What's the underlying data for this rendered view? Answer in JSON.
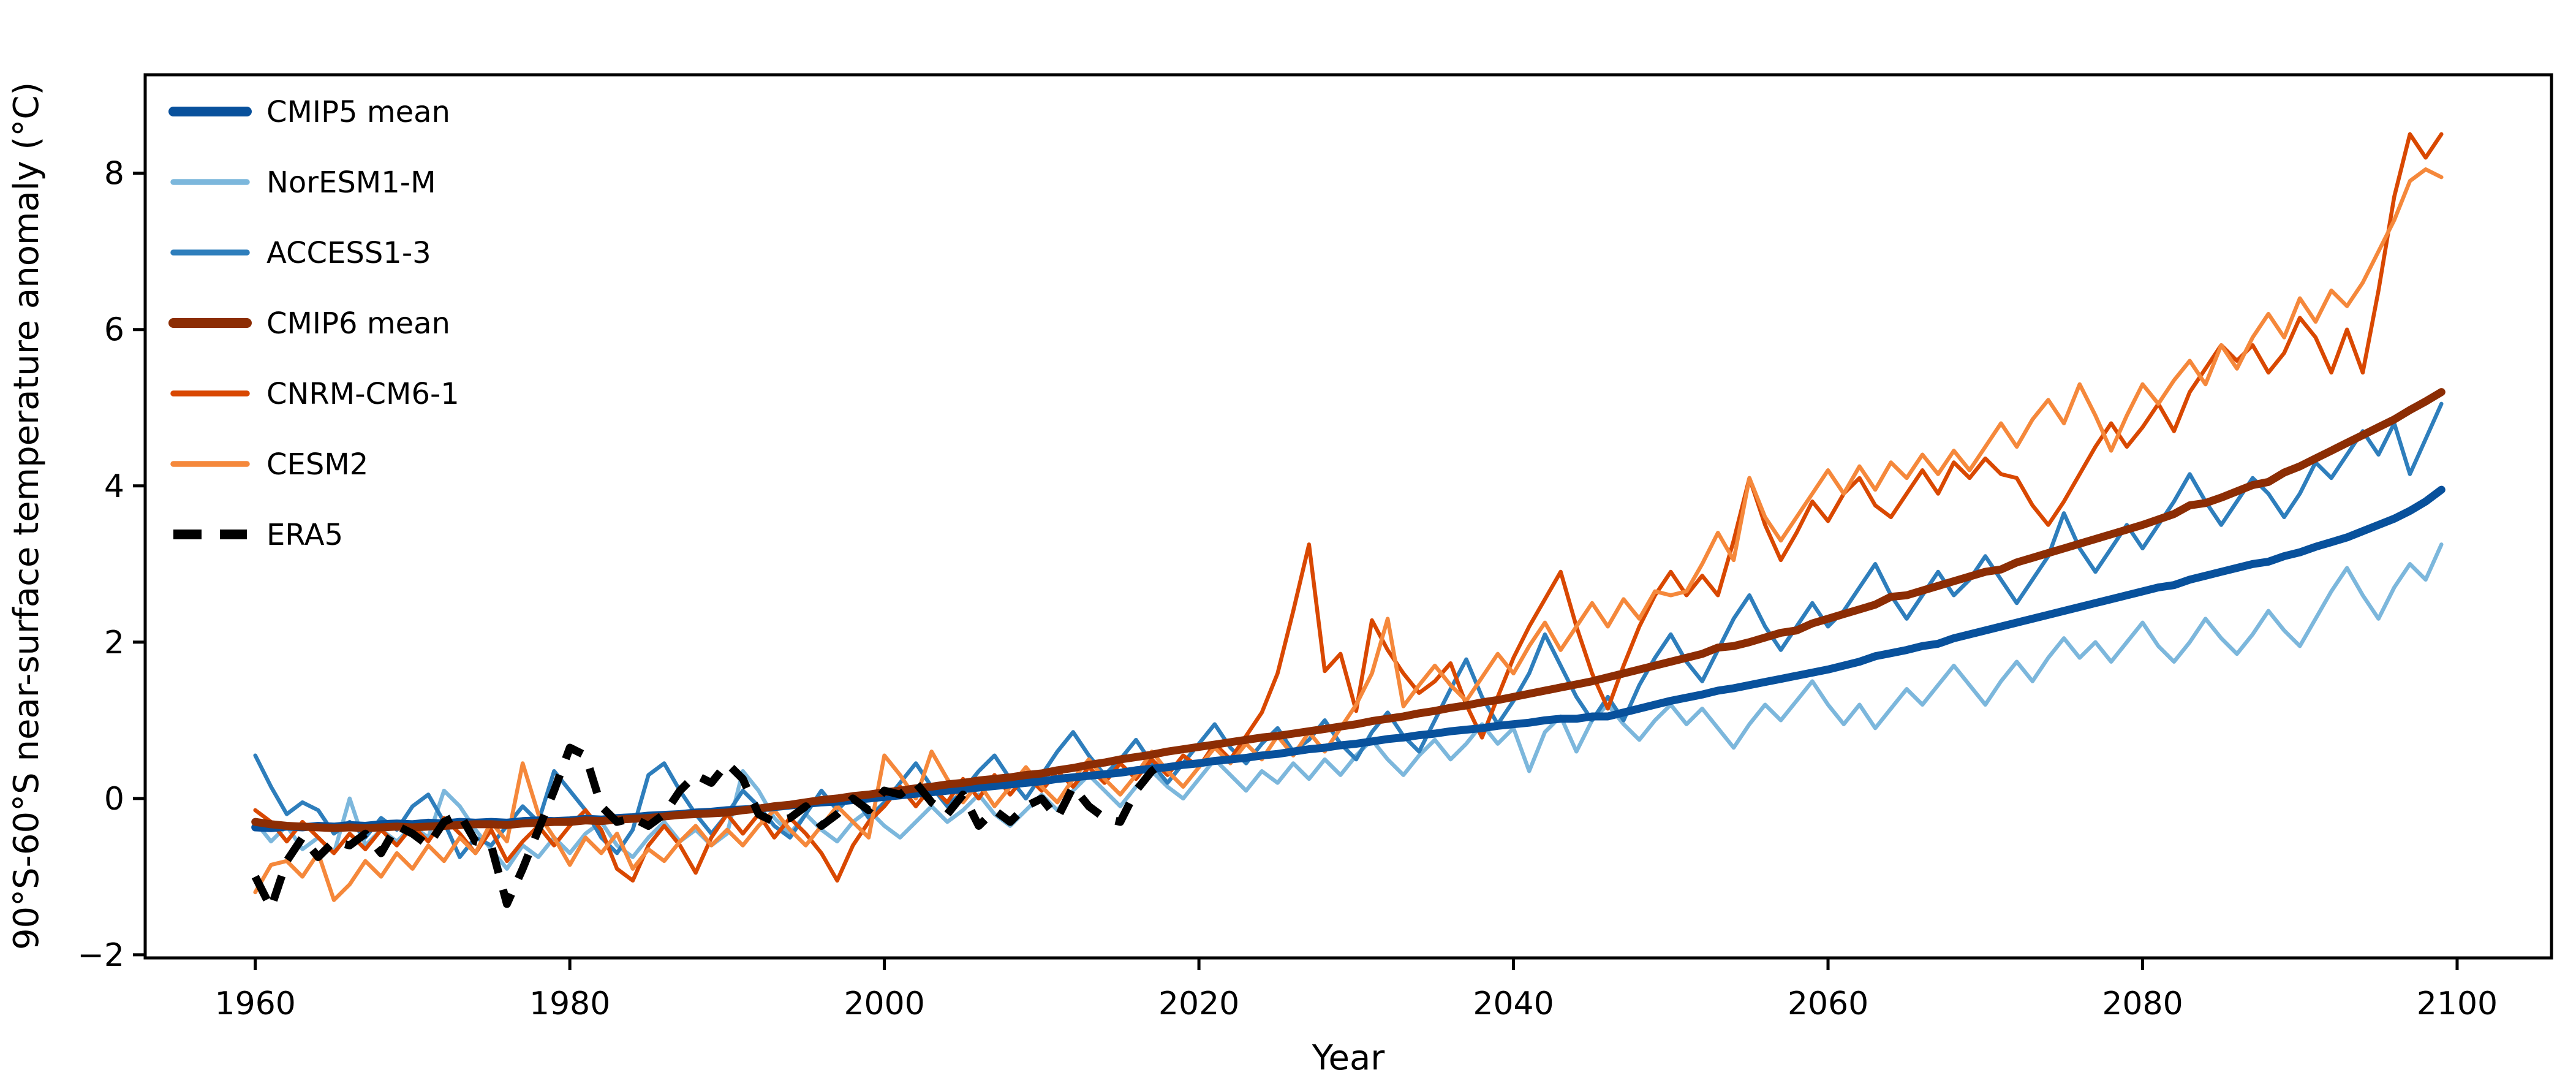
{
  "chart_data": {
    "type": "line",
    "title": "",
    "xlabel": "Year",
    "ylabel": "90°S-60°S near-surface temperature anomaly (°C)",
    "xlim": [
      1953,
      2106
    ],
    "ylim": [
      -2.04,
      9.26
    ],
    "xticks": [
      1960,
      1980,
      2000,
      2020,
      2040,
      2060,
      2080,
      2100
    ],
    "yticks": [
      -2,
      0,
      2,
      4,
      6,
      8
    ],
    "ytick_labels": [
      "−2",
      "0",
      "2",
      "4",
      "6",
      "8"
    ],
    "grid": false,
    "legend_position": "upper left",
    "x_start": 1960,
    "axis_color": "#000000",
    "background_color": "#ffffff",
    "series": [
      {
        "name": "CMIP5 mean",
        "color": "#08519c",
        "line_width": 13,
        "dash": null,
        "x_start": 1960,
        "values": [
          -0.37,
          -0.38,
          -0.36,
          -0.37,
          -0.35,
          -0.36,
          -0.34,
          -0.35,
          -0.33,
          -0.32,
          -0.33,
          -0.31,
          -0.32,
          -0.3,
          -0.31,
          -0.3,
          -0.31,
          -0.29,
          -0.28,
          -0.29,
          -0.28,
          -0.26,
          -0.27,
          -0.25,
          -0.24,
          -0.22,
          -0.21,
          -0.2,
          -0.18,
          -0.17,
          -0.15,
          -0.14,
          -0.13,
          -0.11,
          -0.09,
          -0.07,
          -0.05,
          -0.04,
          -0.02,
          0.0,
          0.02,
          0.04,
          0.06,
          0.08,
          0.1,
          0.12,
          0.14,
          0.16,
          0.18,
          0.2,
          0.22,
          0.25,
          0.27,
          0.29,
          0.31,
          0.33,
          0.36,
          0.38,
          0.4,
          0.43,
          0.45,
          0.48,
          0.5,
          0.52,
          0.55,
          0.57,
          0.6,
          0.63,
          0.65,
          0.68,
          0.7,
          0.73,
          0.76,
          0.78,
          0.81,
          0.83,
          0.86,
          0.88,
          0.9,
          0.93,
          0.95,
          0.97,
          1.0,
          1.02,
          1.02,
          1.05,
          1.05,
          1.1,
          1.15,
          1.2,
          1.25,
          1.29,
          1.33,
          1.38,
          1.41,
          1.45,
          1.49,
          1.53,
          1.57,
          1.61,
          1.65,
          1.7,
          1.75,
          1.82,
          1.86,
          1.9,
          1.95,
          1.98,
          2.05,
          2.1,
          2.15,
          2.2,
          2.25,
          2.3,
          2.35,
          2.4,
          2.45,
          2.5,
          2.55,
          2.6,
          2.65,
          2.7,
          2.73,
          2.8,
          2.85,
          2.9,
          2.95,
          3.0,
          3.03,
          3.1,
          3.15,
          3.22,
          3.28,
          3.34,
          3.42,
          3.5,
          3.58,
          3.68,
          3.8,
          3.95
        ]
      },
      {
        "name": "NorESM1-M",
        "color": "#7cb7dc",
        "line_width": 6.5,
        "dash": null,
        "x_start": 1960,
        "values": [
          -0.3,
          -0.55,
          -0.35,
          -0.65,
          -0.5,
          -0.7,
          0.0,
          -0.6,
          -0.4,
          -0.55,
          -0.35,
          -0.5,
          0.1,
          -0.1,
          -0.4,
          -0.65,
          -0.9,
          -0.6,
          -0.75,
          -0.5,
          -0.7,
          -0.45,
          -0.3,
          -0.6,
          -0.75,
          -0.5,
          -0.3,
          -0.55,
          -0.4,
          -0.6,
          -0.45,
          0.35,
          0.1,
          -0.25,
          -0.45,
          -0.2,
          -0.4,
          -0.55,
          -0.3,
          -0.15,
          -0.35,
          -0.5,
          -0.3,
          -0.1,
          -0.3,
          -0.15,
          0.05,
          -0.2,
          -0.35,
          -0.15,
          0.05,
          -0.15,
          0.1,
          0.3,
          0.1,
          -0.1,
          0.15,
          0.35,
          0.15,
          0.0,
          0.25,
          0.5,
          0.3,
          0.1,
          0.35,
          0.2,
          0.45,
          0.25,
          0.5,
          0.3,
          0.55,
          0.75,
          0.5,
          0.3,
          0.55,
          0.75,
          0.5,
          0.7,
          0.95,
          0.7,
          0.9,
          0.35,
          0.85,
          1.05,
          0.6,
          1.0,
          1.2,
          0.95,
          0.75,
          1.0,
          1.2,
          0.95,
          1.15,
          0.9,
          0.65,
          0.95,
          1.2,
          1.0,
          1.25,
          1.5,
          1.2,
          0.95,
          1.2,
          0.9,
          1.15,
          1.4,
          1.2,
          1.45,
          1.7,
          1.45,
          1.2,
          1.5,
          1.75,
          1.5,
          1.8,
          2.05,
          1.8,
          2.0,
          1.75,
          2.0,
          2.25,
          1.95,
          1.75,
          2.0,
          2.3,
          2.05,
          1.85,
          2.1,
          2.4,
          2.15,
          1.95,
          2.3,
          2.65,
          2.95,
          2.6,
          2.3,
          2.7,
          3.0,
          2.8,
          3.25
        ]
      },
      {
        "name": "ACCESS1-3",
        "color": "#2e7ebc",
        "line_width": 6.5,
        "dash": null,
        "x_start": 1960,
        "values": [
          0.55,
          0.15,
          -0.2,
          -0.05,
          -0.15,
          -0.45,
          -0.3,
          -0.5,
          -0.25,
          -0.4,
          -0.1,
          0.05,
          -0.3,
          -0.75,
          -0.5,
          -0.6,
          -0.35,
          -0.1,
          -0.3,
          0.35,
          0.1,
          -0.15,
          -0.5,
          -0.7,
          -0.4,
          0.3,
          0.45,
          0.1,
          -0.2,
          -0.45,
          -0.2,
          0.1,
          -0.1,
          -0.35,
          -0.5,
          -0.2,
          0.1,
          -0.15,
          0.05,
          -0.25,
          -0.05,
          0.2,
          0.45,
          0.15,
          -0.1,
          0.1,
          0.35,
          0.55,
          0.25,
          0.0,
          0.3,
          0.6,
          0.85,
          0.55,
          0.3,
          0.5,
          0.75,
          0.45,
          0.2,
          0.45,
          0.7,
          0.95,
          0.65,
          0.45,
          0.7,
          0.9,
          0.6,
          0.75,
          1.0,
          0.7,
          0.5,
          0.85,
          1.1,
          0.8,
          0.6,
          1.0,
          1.4,
          1.78,
          1.3,
          0.95,
          1.25,
          1.6,
          2.1,
          1.7,
          1.3,
          1.0,
          1.3,
          1.0,
          1.45,
          1.8,
          2.1,
          1.75,
          1.5,
          1.9,
          2.3,
          2.6,
          2.2,
          1.9,
          2.2,
          2.5,
          2.2,
          2.4,
          2.7,
          3.0,
          2.6,
          2.3,
          2.6,
          2.9,
          2.6,
          2.8,
          3.1,
          2.8,
          2.5,
          2.8,
          3.1,
          3.65,
          3.2,
          2.9,
          3.2,
          3.5,
          3.2,
          3.5,
          3.8,
          4.15,
          3.8,
          3.5,
          3.8,
          4.1,
          3.9,
          3.6,
          3.9,
          4.3,
          4.1,
          4.4,
          4.7,
          4.4,
          4.8,
          4.15,
          4.6,
          5.05
        ]
      },
      {
        "name": "CMIP6 mean",
        "color": "#8c2d04",
        "line_width": 13,
        "dash": null,
        "x_start": 1960,
        "values": [
          -0.3,
          -0.33,
          -0.35,
          -0.36,
          -0.37,
          -0.38,
          -0.37,
          -0.38,
          -0.37,
          -0.36,
          -0.37,
          -0.36,
          -0.35,
          -0.34,
          -0.33,
          -0.33,
          -0.34,
          -0.32,
          -0.31,
          -0.3,
          -0.3,
          -0.28,
          -0.29,
          -0.27,
          -0.26,
          -0.25,
          -0.23,
          -0.21,
          -0.2,
          -0.19,
          -0.18,
          -0.15,
          -0.13,
          -0.1,
          -0.08,
          -0.05,
          -0.02,
          0.0,
          0.03,
          0.05,
          0.08,
          0.1,
          0.13,
          0.15,
          0.18,
          0.2,
          0.23,
          0.25,
          0.27,
          0.3,
          0.32,
          0.36,
          0.39,
          0.43,
          0.46,
          0.5,
          0.53,
          0.56,
          0.6,
          0.63,
          0.66,
          0.69,
          0.72,
          0.75,
          0.78,
          0.8,
          0.83,
          0.86,
          0.89,
          0.92,
          0.95,
          0.99,
          1.02,
          1.05,
          1.09,
          1.12,
          1.16,
          1.19,
          1.23,
          1.26,
          1.3,
          1.34,
          1.38,
          1.42,
          1.46,
          1.5,
          1.55,
          1.6,
          1.65,
          1.7,
          1.75,
          1.8,
          1.85,
          1.93,
          1.95,
          2.0,
          2.06,
          2.12,
          2.15,
          2.24,
          2.3,
          2.36,
          2.42,
          2.48,
          2.58,
          2.6,
          2.66,
          2.72,
          2.78,
          2.84,
          2.9,
          2.93,
          3.02,
          3.08,
          3.14,
          3.2,
          3.26,
          3.32,
          3.38,
          3.44,
          3.5,
          3.57,
          3.64,
          3.75,
          3.78,
          3.85,
          3.93,
          4.01,
          4.05,
          4.17,
          4.25,
          4.35,
          4.45,
          4.55,
          4.65,
          4.75,
          4.85,
          4.97,
          5.08,
          5.2
        ]
      },
      {
        "name": "CNRM-CM6-1",
        "color": "#d94801",
        "line_width": 6.5,
        "dash": null,
        "x_start": 1960,
        "values": [
          -0.15,
          -0.3,
          -0.55,
          -0.3,
          -0.5,
          -0.7,
          -0.45,
          -0.65,
          -0.4,
          -0.6,
          -0.35,
          -0.55,
          -0.25,
          -0.45,
          -0.7,
          -0.4,
          -0.8,
          -0.55,
          -0.35,
          -0.6,
          -0.35,
          -0.15,
          -0.4,
          -0.9,
          -1.05,
          -0.6,
          -0.35,
          -0.6,
          -0.95,
          -0.5,
          -0.2,
          -0.45,
          -0.2,
          -0.5,
          -0.25,
          -0.45,
          -0.7,
          -1.05,
          -0.6,
          -0.3,
          -0.1,
          0.15,
          -0.1,
          0.15,
          -0.05,
          0.25,
          0.0,
          0.3,
          0.05,
          0.3,
          0.1,
          0.35,
          0.15,
          0.4,
          0.2,
          0.45,
          0.25,
          0.5,
          0.3,
          0.55,
          0.4,
          0.7,
          0.5,
          0.8,
          1.1,
          1.6,
          2.4,
          3.25,
          1.63,
          1.85,
          1.12,
          2.28,
          1.9,
          1.6,
          1.35,
          1.5,
          1.73,
          1.2,
          0.78,
          1.3,
          1.8,
          2.2,
          2.55,
          2.9,
          2.2,
          1.6,
          1.15,
          1.7,
          2.2,
          2.6,
          2.9,
          2.6,
          2.85,
          2.6,
          3.3,
          4.1,
          3.5,
          3.05,
          3.4,
          3.8,
          3.55,
          3.9,
          4.1,
          3.75,
          3.6,
          3.9,
          4.2,
          3.9,
          4.3,
          4.1,
          4.35,
          4.15,
          4.1,
          3.75,
          3.5,
          3.8,
          4.15,
          4.5,
          4.8,
          4.5,
          4.75,
          5.05,
          4.7,
          5.2,
          5.5,
          5.8,
          5.6,
          5.8,
          5.45,
          5.7,
          6.15,
          5.9,
          5.45,
          6.0,
          5.45,
          6.5,
          7.7,
          8.5,
          8.2,
          8.5
        ]
      },
      {
        "name": "CESM2",
        "color": "#f5883b",
        "line_width": 6.5,
        "dash": null,
        "x_start": 1960,
        "values": [
          -1.2,
          -0.85,
          -0.8,
          -1.0,
          -0.7,
          -1.3,
          -1.1,
          -0.8,
          -1.0,
          -0.7,
          -0.9,
          -0.6,
          -0.8,
          -0.5,
          -0.7,
          -0.3,
          -0.55,
          0.45,
          -0.2,
          -0.5,
          -0.85,
          -0.5,
          -0.7,
          -0.45,
          -0.9,
          -0.65,
          -0.8,
          -0.55,
          -0.35,
          -0.6,
          -0.4,
          -0.6,
          -0.35,
          -0.15,
          -0.4,
          -0.6,
          -0.35,
          -0.1,
          -0.3,
          -0.5,
          0.55,
          0.3,
          0.0,
          0.6,
          0.25,
          -0.05,
          0.2,
          -0.1,
          0.15,
          0.4,
          0.15,
          -0.05,
          0.25,
          0.5,
          0.25,
          0.05,
          0.3,
          0.6,
          0.35,
          0.15,
          0.4,
          0.65,
          0.45,
          0.7,
          0.5,
          0.8,
          0.55,
          0.85,
          0.6,
          0.9,
          1.2,
          1.6,
          2.3,
          1.18,
          1.45,
          1.7,
          1.45,
          1.25,
          1.55,
          1.85,
          1.6,
          1.95,
          2.25,
          1.9,
          2.2,
          2.5,
          2.2,
          2.55,
          2.3,
          2.65,
          2.6,
          2.65,
          3.0,
          3.4,
          3.05,
          4.1,
          3.6,
          3.3,
          3.6,
          3.9,
          4.2,
          3.9,
          4.25,
          3.95,
          4.3,
          4.1,
          4.4,
          4.15,
          4.45,
          4.2,
          4.5,
          4.8,
          4.5,
          4.85,
          5.1,
          4.8,
          5.3,
          4.9,
          4.45,
          4.9,
          5.3,
          5.05,
          5.35,
          5.6,
          5.3,
          5.8,
          5.5,
          5.9,
          6.2,
          5.9,
          6.4,
          6.1,
          6.5,
          6.3,
          6.6,
          7.0,
          7.4,
          7.9,
          8.05,
          7.95
        ]
      },
      {
        "name": "ERA5",
        "color": "#000000",
        "line_width": 13,
        "dash": [
          42,
          28
        ],
        "x_start": 1960,
        "values": [
          -1.0,
          -1.4,
          -0.8,
          -0.5,
          -0.75,
          -0.55,
          -0.6,
          -0.45,
          -0.7,
          -0.35,
          -0.45,
          -0.6,
          -0.3,
          -0.2,
          -0.55,
          -0.6,
          -1.35,
          -0.9,
          -0.4,
          0.1,
          0.65,
          0.55,
          -0.1,
          -0.3,
          -0.25,
          -0.35,
          -0.2,
          0.1,
          0.3,
          0.2,
          0.45,
          0.25,
          -0.2,
          -0.3,
          -0.25,
          -0.1,
          -0.35,
          -0.2,
          0.0,
          -0.15,
          0.1,
          0.05,
          0.2,
          -0.05,
          -0.2,
          0.05,
          -0.35,
          -0.15,
          -0.3,
          -0.1,
          0.0,
          -0.25,
          0.15,
          -0.1,
          -0.25,
          -0.3,
          0.1,
          0.35,
          0.5
        ]
      }
    ],
    "draw_order": [
      "NorESM1-M",
      "ACCESS1-3",
      "CNRM-CM6-1",
      "CESM2",
      "CMIP5 mean",
      "CMIP6 mean",
      "ERA5"
    ]
  },
  "layout_text": {
    "legend_labels": [
      "CMIP5 mean",
      "NorESM1-M",
      "ACCESS1-3",
      "CMIP6 mean",
      "CNRM-CM6-1",
      "CESM2",
      "ERA5"
    ]
  }
}
